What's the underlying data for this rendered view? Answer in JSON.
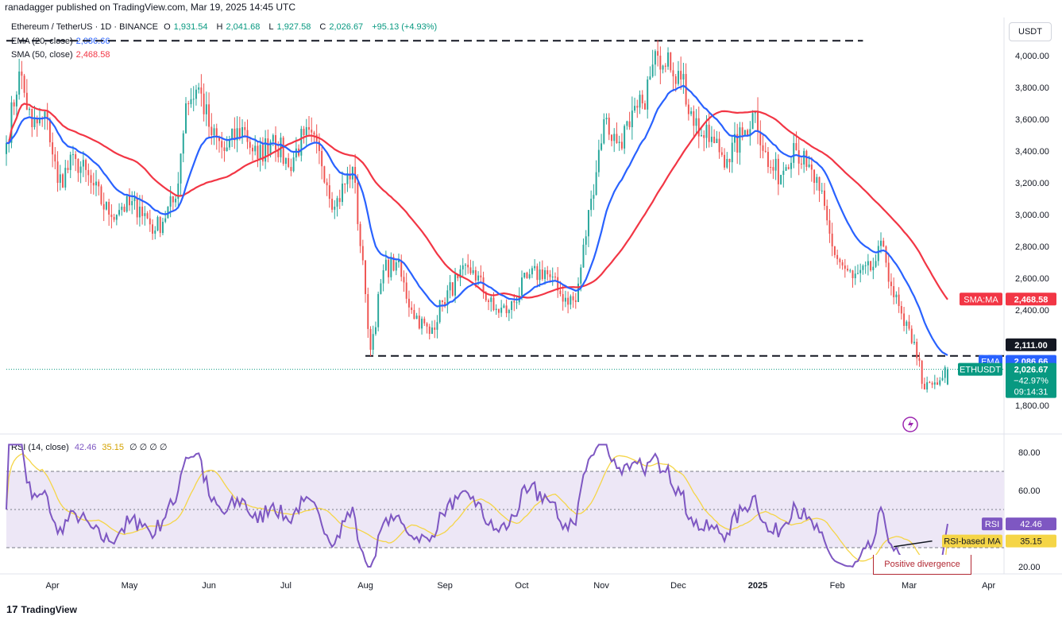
{
  "header": {
    "published": "ranadagger published on TradingView.com, Mar 19, 2025 14:45 UTC"
  },
  "legend": {
    "symbol": "Ethereum / TetherUS · 1D · BINANCE",
    "open_label": "O",
    "open": "1,931.54",
    "high_label": "H",
    "high": "2,041.68",
    "low_label": "L",
    "low": "1,927.58",
    "close_label": "C",
    "close": "2,026.67",
    "change": "+95.13 (+4.93%)",
    "ema_label": "EMA (20, close)",
    "ema_value": "2,086.66",
    "sma_label": "SMA (50, close)",
    "sma_value": "2,468.58",
    "rsi_label": "RSI (14, close)",
    "rsi_value": "42.46",
    "rsi_ma_value": "35.15",
    "rsi_extra": "∅ ∅ ∅ ∅"
  },
  "currency_button": "USDT",
  "footer": {
    "logo": "17",
    "brand": "TradingView"
  },
  "annotation": "Positive divergence",
  "colors": {
    "up": "#26a69a",
    "down": "#ef5350",
    "ema": "#2962ff",
    "sma": "#f23645",
    "rsi": "#7e57c2",
    "rsi_ma": "#f5d547",
    "band": "#ede7f6",
    "price_tag": "#089981",
    "dark": "#131722"
  },
  "chart_data": [
    {
      "type": "candlestick",
      "title": "Ethereum / TetherUS",
      "ylim": [
        1700,
        4100
      ],
      "y_ticks": [
        "4,000.00",
        "3,800.00",
        "3,600.00",
        "3,400.00",
        "3,200.00",
        "3,000.00",
        "2,800.00",
        "2,600.00",
        "2,400.00",
        "1,800.00"
      ],
      "y_tick_values": [
        4000,
        3800,
        3600,
        3400,
        3200,
        3000,
        2800,
        2600,
        2400,
        1800
      ],
      "x_labels": [
        "Apr",
        "May",
        "Jun",
        "Jul",
        "Aug",
        "Sep",
        "Oct",
        "Nov",
        "Dec",
        "2025",
        "Feb",
        "Mar",
        "Apr"
      ],
      "x_label_days": [
        18,
        48,
        79,
        109,
        140,
        171,
        201,
        232,
        262,
        293,
        324,
        352,
        383
      ],
      "last_day": 367,
      "close_anchors_day": [
        0,
        5,
        10,
        16,
        20,
        27,
        33,
        40,
        45,
        52,
        58,
        66,
        70,
        75,
        80,
        85,
        92,
        98,
        104,
        110,
        116,
        122,
        128,
        135,
        140,
        142,
        147,
        152,
        158,
        165,
        170,
        176,
        182,
        190,
        196,
        203,
        210,
        216,
        222,
        228,
        233,
        238,
        243,
        248,
        254,
        258,
        263,
        267,
        271,
        276,
        281,
        287,
        292,
        297,
        302,
        307,
        312,
        317,
        322,
        325,
        330,
        337,
        342,
        345,
        350,
        354,
        358,
        363,
        367
      ],
      "close_anchors_price": [
        3450,
        3900,
        3550,
        3600,
        3200,
        3350,
        3200,
        3000,
        3050,
        3050,
        2900,
        3100,
        3700,
        3800,
        3500,
        3400,
        3550,
        3350,
        3500,
        3300,
        3500,
        3400,
        3050,
        3300,
        2500,
        2150,
        2650,
        2700,
        2400,
        2250,
        2450,
        2600,
        2650,
        2400,
        2400,
        2600,
        2650,
        2500,
        2450,
        3100,
        3600,
        3450,
        3550,
        3700,
        4000,
        4020,
        3850,
        3650,
        3500,
        3450,
        3350,
        3500,
        3650,
        3300,
        3250,
        3450,
        3300,
        3150,
        2800,
        2700,
        2600,
        2650,
        2800,
        2550,
        2300,
        2200,
        1900,
        1930,
        2026.67
      ],
      "ema_period": 20,
      "sma_period": 50,
      "levels": [
        {
          "name": "resistance",
          "value": 4094
        },
        {
          "name": "support",
          "value": 2111
        }
      ],
      "price_labels": [
        {
          "name": "level",
          "text": "2,111.00",
          "value": 2111
        },
        {
          "name": "ema",
          "title": "EMA",
          "text": "2,086.66",
          "value": 2086.66
        },
        {
          "name": "last",
          "title": "ETHUSDT",
          "text": "2,026.67",
          "value": 2026.67,
          "change": "−42.97%",
          "countdown": "09:14:31"
        },
        {
          "name": "sma",
          "title": "SMA:MA",
          "text": "2,468.58",
          "value": 2468.58
        }
      ]
    },
    {
      "type": "line",
      "title": "RSI (14, close)",
      "ylim": [
        17,
        86
      ],
      "y_ticks": [
        "80.00",
        "60.00",
        "20.00"
      ],
      "y_tick_values": [
        80,
        60,
        20
      ],
      "band": [
        30,
        70
      ],
      "series": [
        {
          "name": "RSI",
          "value": "42.46"
        },
        {
          "name": "RSI-based MA",
          "value": "35.15"
        }
      ],
      "divergence": {
        "from_day": 346,
        "to_day": 361,
        "from_rsi": 30.5,
        "to_rsi": 33.5
      }
    }
  ]
}
